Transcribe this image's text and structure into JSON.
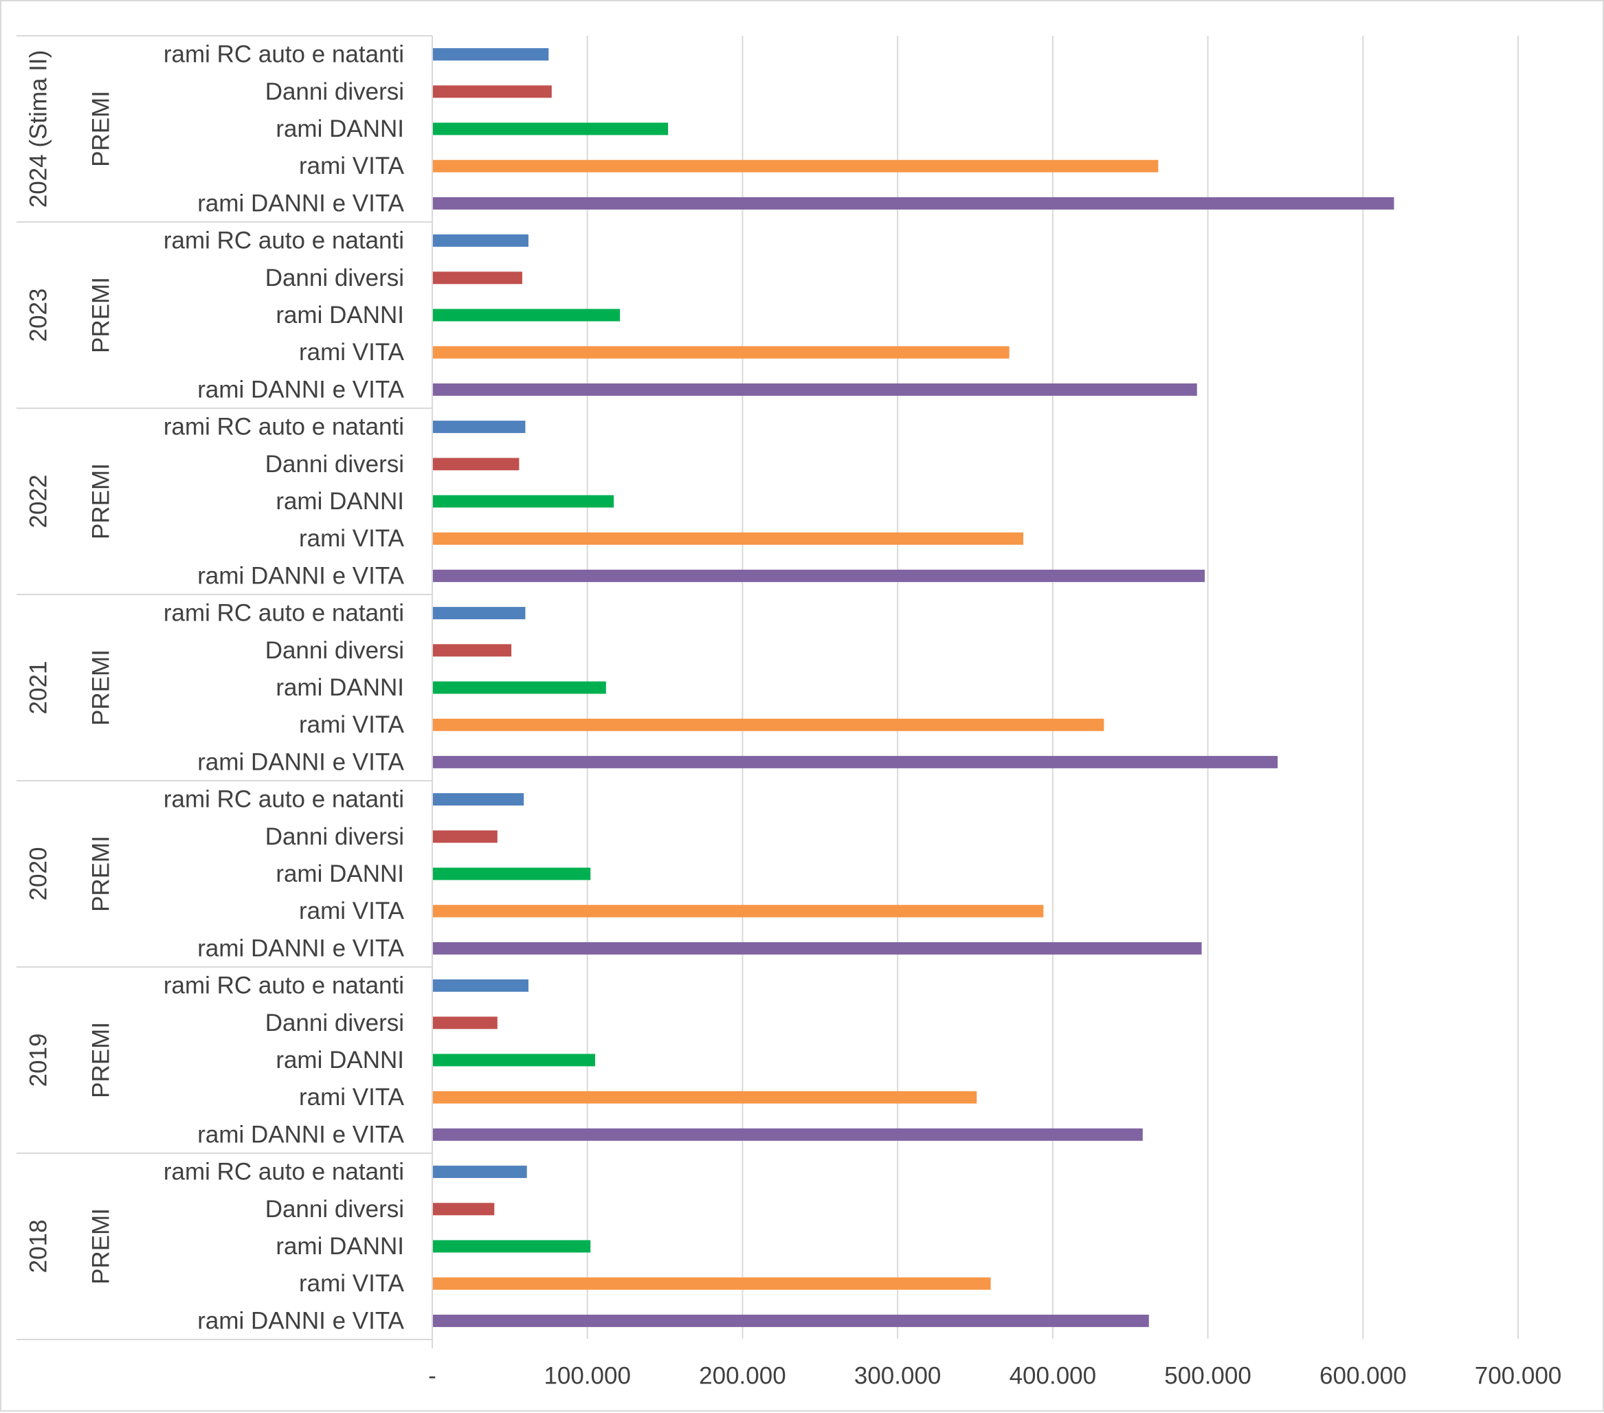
{
  "chart_data": {
    "type": "bar",
    "orientation": "horizontal",
    "grid": true,
    "xlim": [
      0,
      700000
    ],
    "x_ticks": [
      0,
      100000,
      200000,
      300000,
      400000,
      500000,
      600000,
      700000
    ],
    "x_tick_labels": [
      "-",
      "100.000",
      "200.000",
      "300.000",
      "400.000",
      "500.000",
      "600.000",
      "700.000"
    ],
    "series_colors": {
      "rami RC auto e natanti": "#4f81bd",
      "Danni diversi": "#c0504d",
      "rami DANNI": "#00b050",
      "rami VITA": "#f79646",
      "rami DANNI e VITA": "#8064a2"
    },
    "groups": [
      {
        "year": "2024 (Stima II)",
        "sublabel": "PREMI",
        "categories": [
          "rami RC auto e natanti",
          "Danni diversi",
          "rami DANNI",
          "rami VITA",
          "rami DANNI e VITA"
        ],
        "values": [
          75000,
          77000,
          152000,
          468000,
          620000
        ]
      },
      {
        "year": "2023",
        "sublabel": "PREMI",
        "categories": [
          "rami RC auto e natanti",
          "Danni diversi",
          "rami DANNI",
          "rami VITA",
          "rami DANNI e VITA"
        ],
        "values": [
          62000,
          58000,
          121000,
          372000,
          493000
        ]
      },
      {
        "year": "2022",
        "sublabel": "PREMI",
        "categories": [
          "rami RC auto e natanti",
          "Danni diversi",
          "rami DANNI",
          "rami VITA",
          "rami DANNI e VITA"
        ],
        "values": [
          60000,
          56000,
          117000,
          381000,
          498000
        ]
      },
      {
        "year": "2021",
        "sublabel": "PREMI",
        "categories": [
          "rami RC auto e natanti",
          "Danni diversi",
          "rami DANNI",
          "rami VITA",
          "rami DANNI e VITA"
        ],
        "values": [
          60000,
          51000,
          112000,
          433000,
          545000
        ]
      },
      {
        "year": "2020",
        "sublabel": "PREMI",
        "categories": [
          "rami RC auto e natanti",
          "Danni diversi",
          "rami DANNI",
          "rami VITA",
          "rami DANNI e VITA"
        ],
        "values": [
          59000,
          42000,
          102000,
          394000,
          496000
        ]
      },
      {
        "year": "2019",
        "sublabel": "PREMI",
        "categories": [
          "rami RC auto e natanti",
          "Danni diversi",
          "rami DANNI",
          "rami VITA",
          "rami DANNI e VITA"
        ],
        "values": [
          62000,
          42000,
          105000,
          351000,
          458000
        ]
      },
      {
        "year": "2018",
        "sublabel": "PREMI",
        "categories": [
          "rami RC auto e natanti",
          "Danni diversi",
          "rami DANNI",
          "rami VITA",
          "rami DANNI e VITA"
        ],
        "values": [
          61000,
          40000,
          102000,
          360000,
          462000
        ]
      }
    ]
  }
}
